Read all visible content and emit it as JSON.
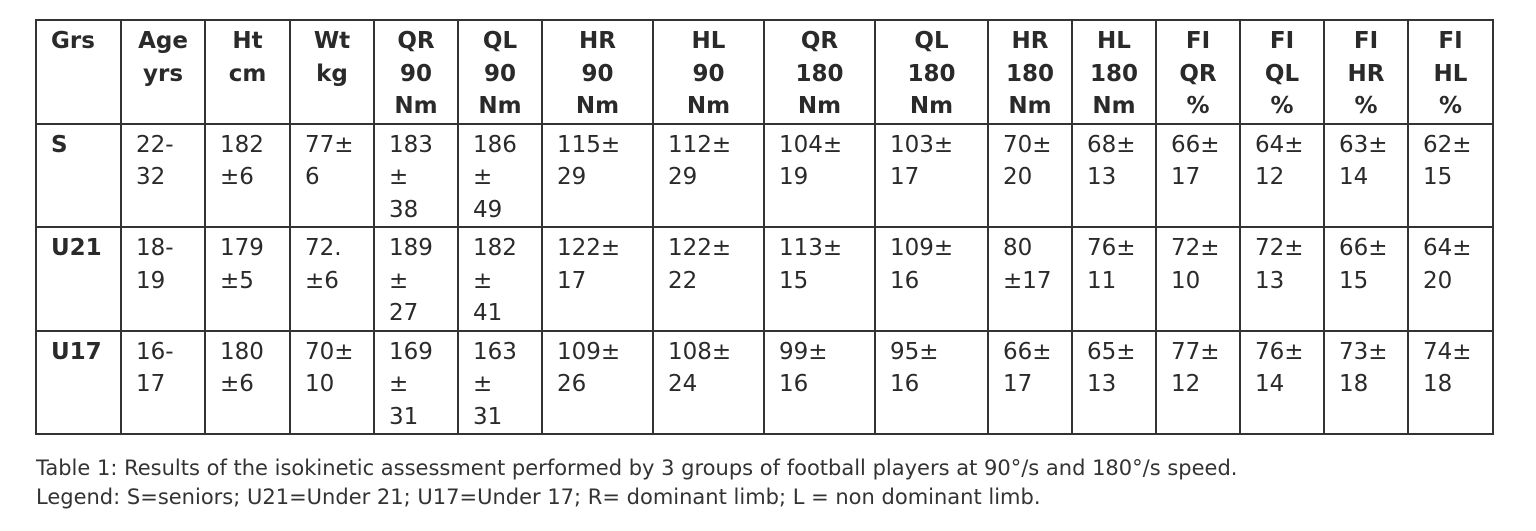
{
  "table": {
    "header": [
      [
        "Grs"
      ],
      [
        "Age",
        "yrs"
      ],
      [
        "Ht",
        "cm"
      ],
      [
        "Wt",
        "kg"
      ],
      [
        "QR",
        "90",
        "Nm"
      ],
      [
        "QL",
        "90",
        "Nm"
      ],
      [
        "HR",
        "90",
        "Nm"
      ],
      [
        "HL",
        "90",
        "Nm"
      ],
      [
        "QR",
        "180",
        "Nm"
      ],
      [
        "QL",
        "180",
        "Nm"
      ],
      [
        "HR",
        "180",
        "Nm"
      ],
      [
        "HL",
        "180",
        "Nm"
      ],
      [
        "FI",
        "QR",
        "%"
      ],
      [
        "FI",
        "QL",
        "%"
      ],
      [
        "FI",
        "HR",
        "%"
      ],
      [
        "FI",
        "HL",
        "%"
      ]
    ],
    "rows": [
      [
        [
          "S"
        ],
        [
          "22-",
          "32"
        ],
        [
          "182",
          "±6"
        ],
        [
          "77±",
          "6"
        ],
        [
          "183",
          "±",
          "38"
        ],
        [
          "186",
          "±",
          "49"
        ],
        [
          "115±",
          "29"
        ],
        [
          "112±",
          "29"
        ],
        [
          "104±",
          "19"
        ],
        [
          "103±",
          "17"
        ],
        [
          "70±",
          "20"
        ],
        [
          "68±",
          "13"
        ],
        [
          "66±",
          "17"
        ],
        [
          "64±",
          "12"
        ],
        [
          "63±",
          "14"
        ],
        [
          "62±",
          "15"
        ]
      ],
      [
        [
          "U21"
        ],
        [
          "18-",
          "19"
        ],
        [
          "179",
          "±5"
        ],
        [
          "72.",
          "±6"
        ],
        [
          "189",
          "±",
          "27"
        ],
        [
          "182",
          "±",
          "41"
        ],
        [
          "122±",
          "17"
        ],
        [
          "122±",
          "22"
        ],
        [
          "113±",
          "15"
        ],
        [
          "109±",
          "16"
        ],
        [
          "80",
          "±17"
        ],
        [
          "76±",
          "11"
        ],
        [
          "72±",
          "10"
        ],
        [
          "72±",
          "13"
        ],
        [
          "66±",
          "15"
        ],
        [
          "64±",
          "20"
        ]
      ],
      [
        [
          "U17"
        ],
        [
          "16-",
          "17"
        ],
        [
          "180",
          "±6"
        ],
        [
          "70±",
          "10"
        ],
        [
          "169",
          "±",
          "31"
        ],
        [
          "163",
          "±",
          "31"
        ],
        [
          "109±",
          "26"
        ],
        [
          "108±",
          "24"
        ],
        [
          "99±",
          "16"
        ],
        [
          "95±",
          "16"
        ],
        [
          "66±",
          "17"
        ],
        [
          "65±",
          "13"
        ],
        [
          "77±",
          "12"
        ],
        [
          "76±",
          "14"
        ],
        [
          "73±",
          "18"
        ],
        [
          "74±",
          "18"
        ]
      ]
    ]
  },
  "caption": [
    "Table 1: Results of the isokinetic assessment performed by 3 groups of football players at 90°/s and 180°/s speed.",
    "Legend: S=seniors; U21=Under 21; U17=Under 17; R= dominant limb; L = non dominant limb."
  ]
}
